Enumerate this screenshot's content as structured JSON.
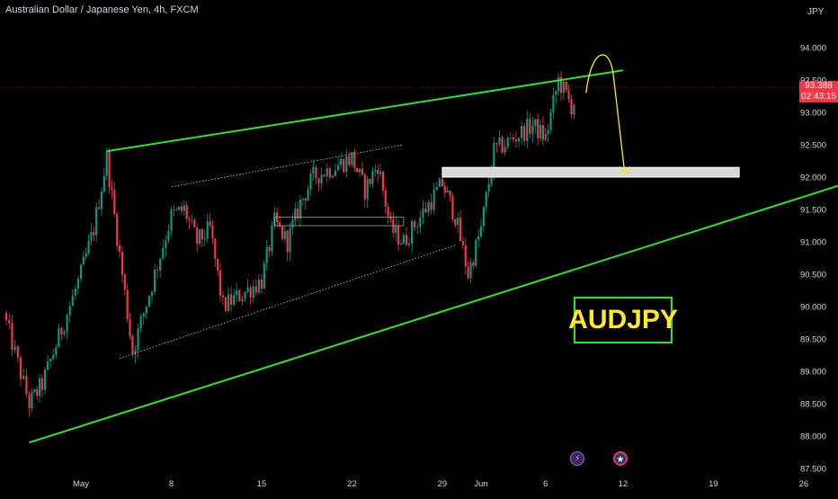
{
  "header": {
    "symbol_title": "Australian Dollar / Japanese Yen, 4h, FXCM",
    "currency": "JPY"
  },
  "price_badge": {
    "value": "93.388",
    "timer": "02:43:15",
    "color": "#f23645"
  },
  "annotation": {
    "label": "AUDJPY",
    "box_color": "#2ee32e",
    "text_color": "#ffe92a"
  },
  "events": [
    {
      "icon": "lightning-icon"
    },
    {
      "icon": "australia-flag-icon"
    }
  ],
  "colors": {
    "up_candle": "#089981",
    "down_candle": "#f23645",
    "trendline": "#2ee32e",
    "arrow": "#ffe92a",
    "zone": "#d9d9d9",
    "background": "#000000"
  },
  "chart_data": {
    "type": "candlestick",
    "symbol": "AUDJPY",
    "timeframe": "4h",
    "source": "FXCM",
    "ylim": [
      87.5,
      94.0
    ],
    "y_ticks": [
      "94.000",
      "93.500",
      "93.000",
      "92.500",
      "92.000",
      "91.500",
      "91.000",
      "90.500",
      "90.000",
      "89.500",
      "89.000",
      "88.500",
      "88.000",
      "87.500"
    ],
    "x_ticks": [
      "May",
      "8",
      "15",
      "22",
      "29",
      "Jun",
      "6",
      "12",
      "19",
      "26"
    ],
    "last_price": 93.388,
    "path_x": [
      "Apr 25",
      "Apr 27",
      "Apr 28",
      "May 1",
      "May 2",
      "May 3",
      "May 4",
      "May 5",
      "May 8",
      "May 9",
      "May 10",
      "May 11",
      "May 12",
      "May 15",
      "May 16",
      "May 17",
      "May 18",
      "May 19",
      "May 22",
      "May 23",
      "May 24",
      "May 25",
      "May 26",
      "May 29",
      "May 30",
      "May 31",
      "Jun 1",
      "Jun 2",
      "Jun 5",
      "Jun 6",
      "Jun 7",
      "Jun 8",
      "Jun 9"
    ],
    "path_close": [
      89.9,
      88.5,
      88.8,
      90.5,
      91.2,
      92.3,
      90.8,
      89.3,
      91.4,
      91.5,
      91.0,
      91.2,
      90.0,
      90.4,
      91.3,
      91.0,
      91.6,
      92.0,
      92.3,
      91.8,
      92.2,
      91.2,
      91.0,
      91.9,
      91.4,
      90.5,
      91.2,
      92.4,
      92.8,
      92.6,
      93.5,
      93.1,
      93.388
    ],
    "resistance_zone": [
      92.0,
      92.15
    ],
    "inner_zone": [
      91.25,
      91.38
    ],
    "upper_trendline": {
      "from": [
        "May 3",
        92.4
      ],
      "to": [
        "Jun 12",
        93.65
      ]
    },
    "lower_trendline": {
      "from": [
        "Apr 27",
        87.9
      ],
      "to": [
        "Jun 30",
        91.95
      ]
    },
    "projection": {
      "peak": 93.85,
      "target": 92.05
    }
  }
}
